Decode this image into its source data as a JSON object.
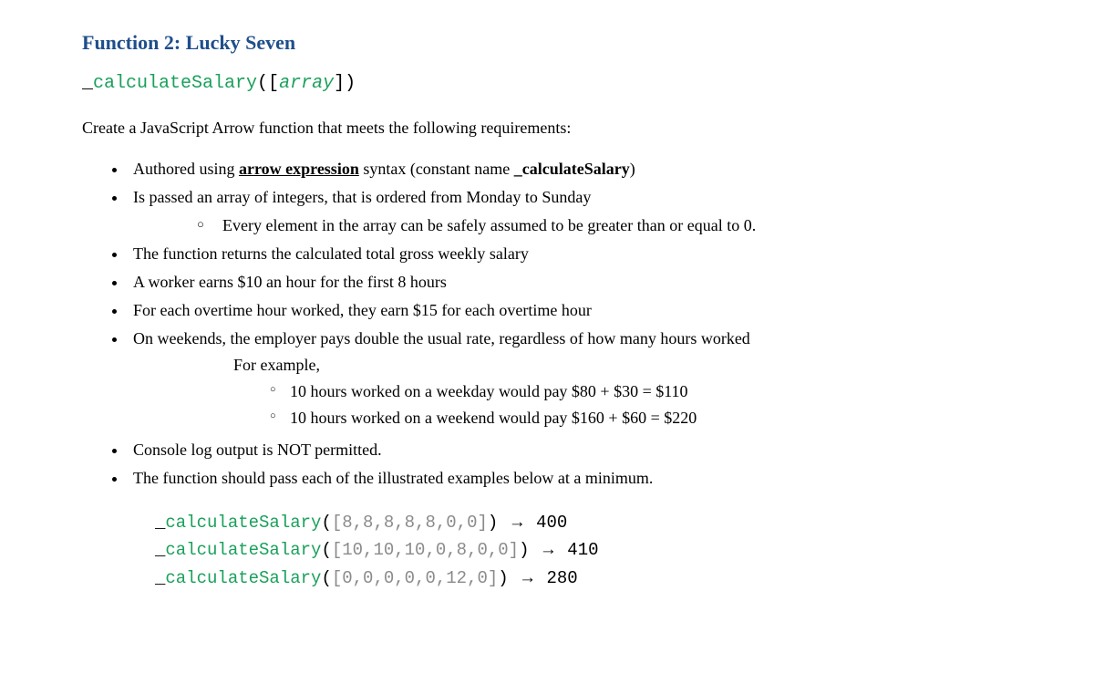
{
  "heading": "Function 2: Lucky Seven",
  "signature": {
    "underscore": "_",
    "name": "calculateSalary",
    "open": "([",
    "param": "array",
    "close": "])"
  },
  "intro": "Create a JavaScript Arrow function that meets the following requirements:",
  "bullets": {
    "b1_prefix": "Authored using ",
    "b1_bold": "arrow expression",
    "b1_mid": " syntax (constant name  ",
    "b1_bold2": "_calculateSalary",
    "b1_suffix": ")",
    "b2": "Is passed an array of integers, that is ordered from Monday to Sunday",
    "b2_sub": "Every element in the array can be safely assumed to be greater than or equal to 0.",
    "b3": "The function returns the calculated total gross weekly salary",
    "b4": "A worker earns $10 an hour for the first 8 hours",
    "b5": "For each overtime hour worked, they earn $15 for each overtime hour",
    "b6": "On weekends, the employer pays double the usual rate, regardless of how many hours worked",
    "b6_sub1": "For example,",
    "b6_ex1": "10 hours worked on a weekday would pay $80 + $30 = $110",
    "b6_ex2": "10 hours worked on a weekend would pay $160 + $60 = $220",
    "b7": "Console log output is NOT permitted.",
    "b8": "The function should pass each of the illustrated examples below at a minimum."
  },
  "examples": [
    {
      "underscore": "_",
      "name": "calculateSalary",
      "args": "[8,8,8,8,8,0,0]",
      "arrow": "→",
      "result": "400"
    },
    {
      "underscore": "_",
      "name": "calculateSalary",
      "args": "[10,10,10,0,8,0,0]",
      "arrow": "→",
      "result": "410"
    },
    {
      "underscore": "_",
      "name": "calculateSalary",
      "args": "[0,0,0,0,0,12,0]",
      "arrow": "→",
      "result": "280"
    }
  ]
}
